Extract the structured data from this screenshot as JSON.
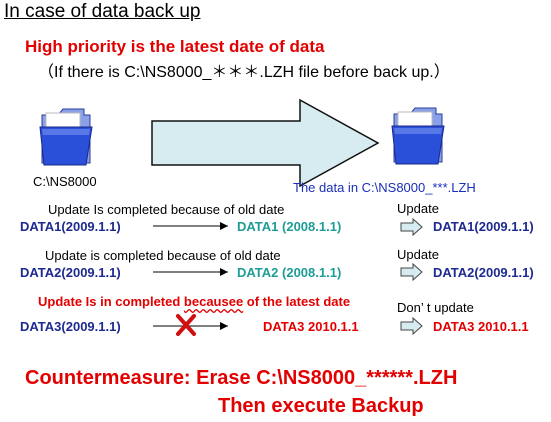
{
  "title": "In case of data back up",
  "high_priority": "High priority is the latest date of data",
  "high_priority_note": "（If there is C:\\NS8000_＊＊＊.LZH file before back up.）",
  "source_folder_label": "C:\\NS8000",
  "dest_folder_label": "The data in C:\\NS8000_***.LZH",
  "rows": [
    {
      "message": "Update Is completed because of old date",
      "source": "DATA1(2009.1.1)",
      "existing": "DATA1 (2008.1.1)",
      "action": "Update",
      "result": "DATA1(2009.1.1)"
    },
    {
      "message": "Update is completed because of old date",
      "source": "DATA2(2009.1.1)",
      "existing": "DATA2 (2008.1.1)",
      "action": "Update",
      "result": "DATA2(2009.1.1)"
    },
    {
      "message": "Update Is in completed becausee of the latest date",
      "source": "DATA3(2009.1.1)",
      "existing": "DATA3 2010.1.1",
      "action": "Don’ t update",
      "result": "DATA3 2010.1.1"
    }
  ],
  "countermeasure_line1": "Countermeasure: Erase C:\\NS8000_******.LZH",
  "countermeasure_line2": "Then execute Backup",
  "colors": {
    "red": "#e30000",
    "navy": "#1d2a8f",
    "teal": "#1e9c96",
    "arrow_fill": "#d7ecf0",
    "folder_blue": "#2a4fd8"
  }
}
